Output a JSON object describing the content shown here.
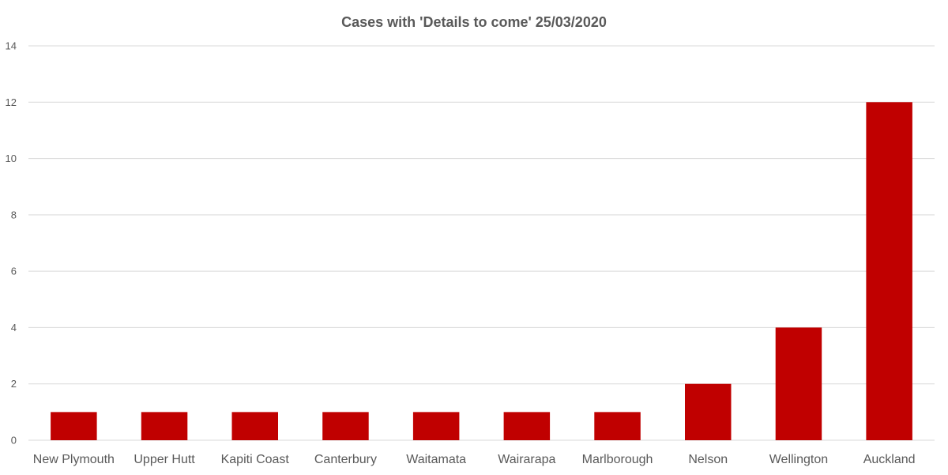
{
  "chart_data": {
    "type": "bar",
    "title": "Cases with 'Details to come' 25/03/2020",
    "xlabel": "",
    "ylabel": "",
    "categories": [
      "New Plymouth",
      "Upper Hutt",
      "Kapiti Coast",
      "Canterbury",
      "Waitamata",
      "Wairarapa",
      "Marlborough",
      "Nelson",
      "Wellington",
      "Auckland"
    ],
    "values": [
      1,
      1,
      1,
      1,
      1,
      1,
      1,
      2,
      4,
      12
    ],
    "ylim": [
      0,
      14
    ],
    "yticks": [
      0,
      2,
      4,
      6,
      8,
      10,
      12,
      14
    ],
    "grid": true,
    "legend": "none",
    "bar_color": "#c00000"
  }
}
